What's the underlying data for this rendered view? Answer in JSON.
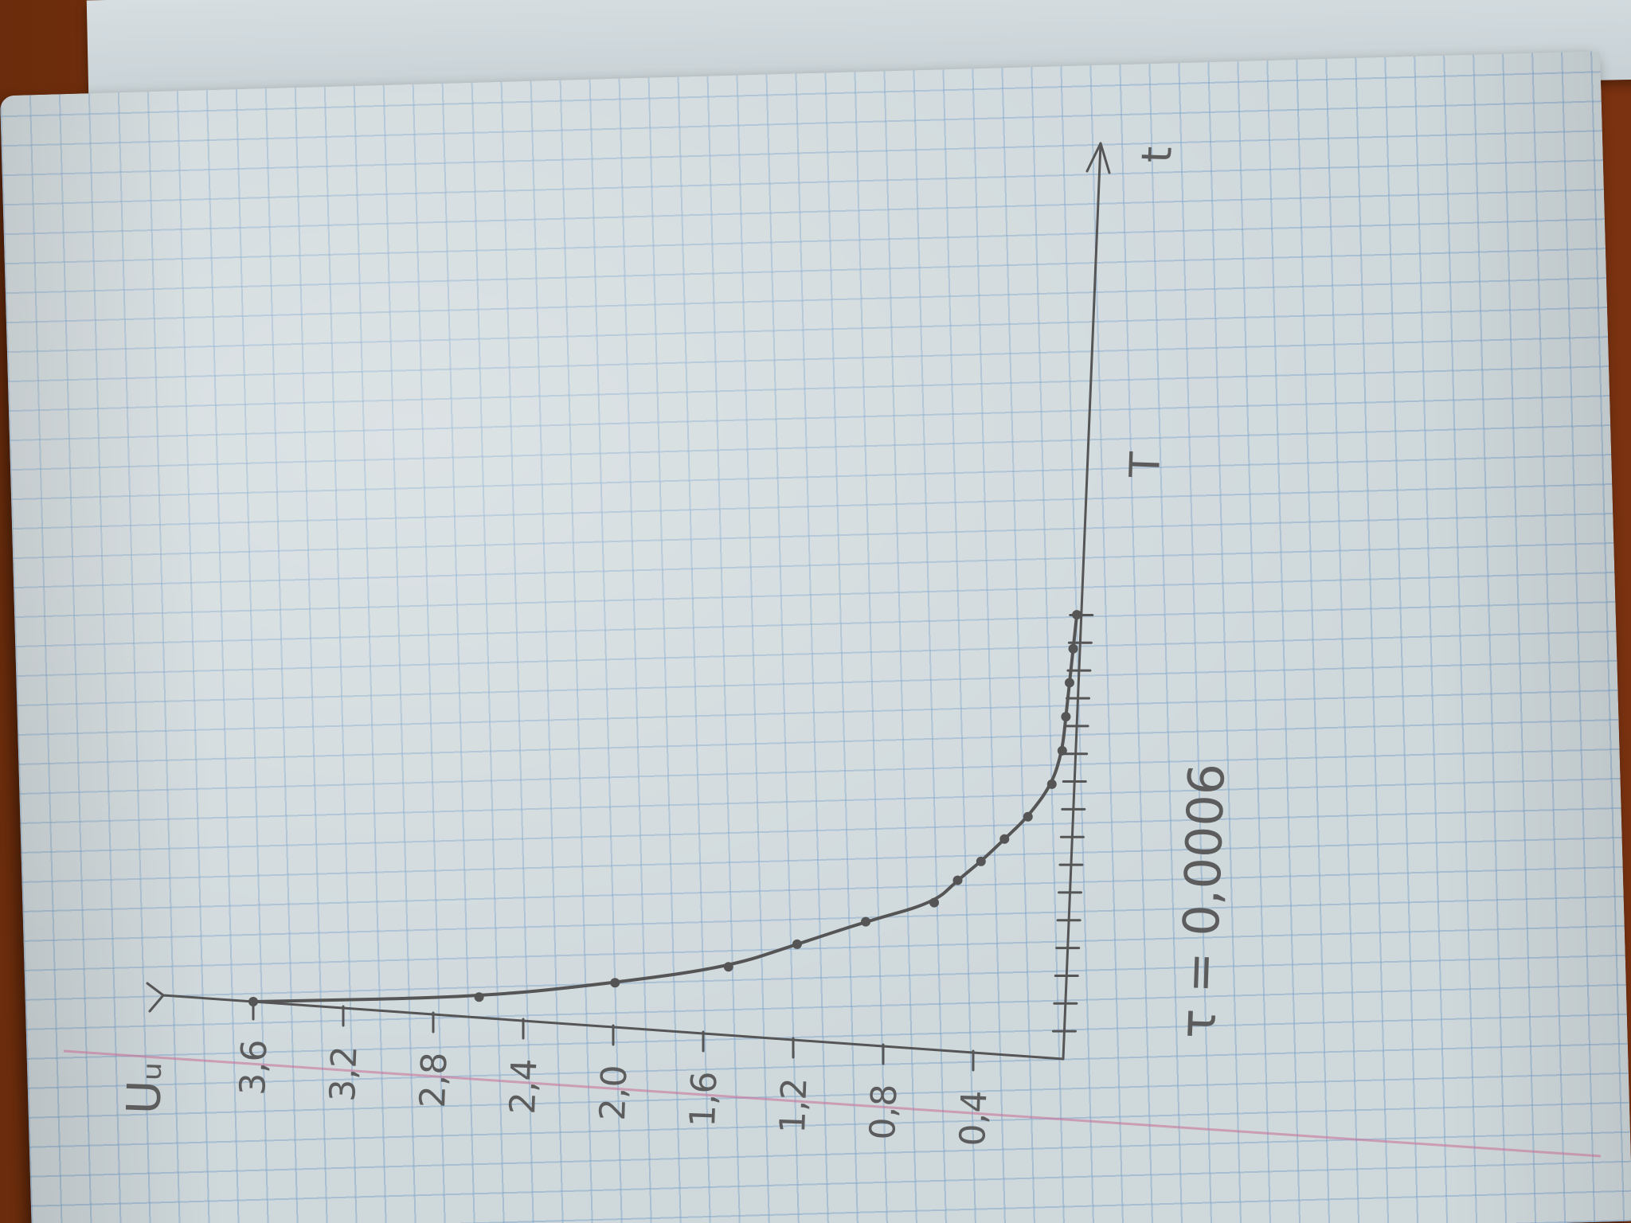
{
  "photo": {
    "description_free": true
  },
  "chart_data": {
    "type": "line",
    "title": "",
    "ylabel": "Uᵤ",
    "xlabel": "T",
    "x_arrow_label": "t",
    "annotation": "τ = 0,0006",
    "y_ticks": [
      "0,4",
      "0,8",
      "1,2",
      "1,6",
      "2,0",
      "2,4",
      "2,8",
      "3,2",
      "3,6"
    ],
    "y_tick_values": [
      0.4,
      0.8,
      1.2,
      1.6,
      2.0,
      2.4,
      2.8,
      3.2,
      3.6
    ],
    "ylim": [
      0,
      4.0
    ],
    "x_tick_count": 16,
    "series": [
      {
        "values": [
          3.6,
          2.6,
          2.0,
          1.5,
          1.2,
          0.9,
          0.6,
          0.5,
          0.4,
          0.3,
          0.2,
          0.1,
          0.06,
          0.05,
          0.04,
          0.03,
          0.02
        ],
        "x": [
          0.0,
          0.6,
          1.3,
          2.0,
          2.8,
          3.6,
          4.3,
          5.0,
          5.6,
          6.3,
          7.0,
          8.0,
          9.0,
          10.0,
          11.0,
          12.0,
          13.0
        ]
      }
    ]
  }
}
